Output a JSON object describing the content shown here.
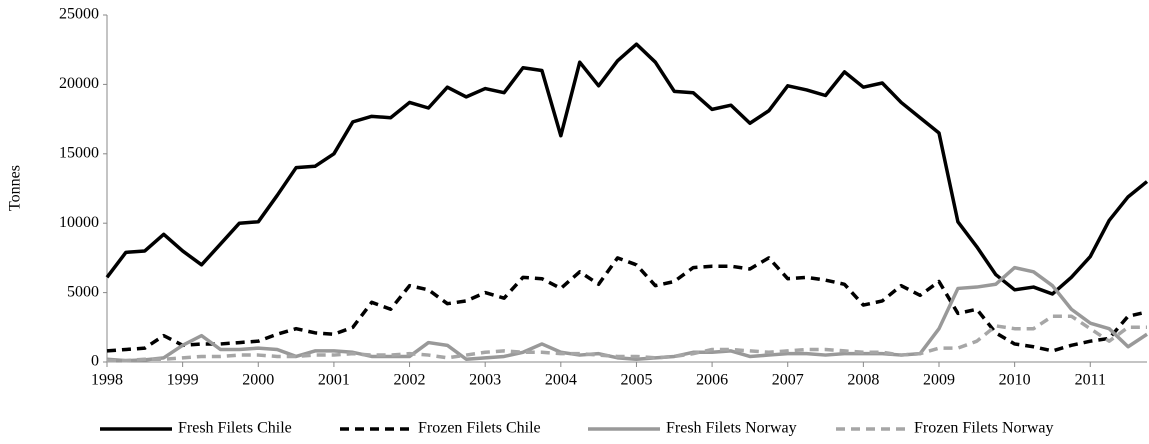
{
  "chart_data": {
    "type": "line",
    "y_label": "Tonnes",
    "x": [
      1998,
      1998.25,
      1998.5,
      1998.75,
      1999,
      1999.25,
      1999.5,
      1999.75,
      2000,
      2000.25,
      2000.5,
      2000.75,
      2001,
      2001.25,
      2001.5,
      2001.75,
      2002,
      2002.25,
      2002.5,
      2002.75,
      2003,
      2003.25,
      2003.5,
      2003.75,
      2004,
      2004.25,
      2004.5,
      2004.75,
      2005,
      2005.25,
      2005.5,
      2005.75,
      2006,
      2006.25,
      2006.5,
      2006.75,
      2007,
      2007.25,
      2007.5,
      2007.75,
      2008,
      2008.25,
      2008.5,
      2008.75,
      2009,
      2009.25,
      2009.5,
      2009.75,
      2010,
      2010.25,
      2010.5,
      2010.75,
      2011,
      2011.25,
      2011.5,
      2011.75
    ],
    "xlim": [
      1998,
      2011.75
    ],
    "xticks": [
      1998,
      1999,
      2000,
      2001,
      2002,
      2003,
      2004,
      2005,
      2006,
      2007,
      2008,
      2009,
      2010,
      2011
    ],
    "ylim": [
      0,
      25000
    ],
    "yticks": [
      0,
      5000,
      10000,
      15000,
      20000,
      25000
    ],
    "grid": false,
    "legend": "bottom",
    "series": [
      {
        "name": "Fresh Filets Chile",
        "color": "#000000",
        "dashed": false,
        "values": [
          6100,
          7900,
          8000,
          9200,
          8000,
          7000,
          8500,
          10000,
          10100,
          12000,
          14000,
          14100,
          15000,
          17300,
          17700,
          17600,
          18700,
          18300,
          19800,
          19100,
          19700,
          19400,
          21200,
          21000,
          16300,
          21600,
          19900,
          21700,
          22900,
          21600,
          19500,
          19400,
          18200,
          18500,
          17200,
          18100,
          19900,
          19600,
          19200,
          20900,
          19800,
          20100,
          18700,
          17600,
          16500,
          10100,
          8300,
          6300,
          5200,
          5400,
          4900,
          6100,
          7600,
          10200,
          11900,
          13000
        ]
      },
      {
        "name": "Frozen Filets Chile",
        "color": "#000000",
        "dashed": true,
        "values": [
          800,
          900,
          1000,
          1900,
          1200,
          1300,
          1300,
          1400,
          1500,
          2000,
          2400,
          2100,
          2000,
          2500,
          4300,
          3800,
          5500,
          5200,
          4200,
          4400,
          5000,
          4600,
          6100,
          6000,
          5300,
          6500,
          5600,
          7500,
          7000,
          5500,
          5800,
          6800,
          6900,
          6900,
          6700,
          7500,
          6000,
          6100,
          5900,
          5600,
          4100,
          4400,
          5500,
          4800,
          5800,
          3500,
          3800,
          2100,
          1300,
          1100,
          800,
          1200,
          1500,
          1700,
          3300,
          3600
        ]
      },
      {
        "name": "Fresh Filets Norway",
        "color": "#999999",
        "dashed": false,
        "values": [
          200,
          100,
          150,
          300,
          1200,
          1900,
          900,
          900,
          1000,
          900,
          400,
          800,
          800,
          700,
          400,
          400,
          400,
          1400,
          1200,
          200,
          300,
          400,
          700,
          1300,
          700,
          500,
          600,
          300,
          200,
          300,
          400,
          700,
          700,
          800,
          400,
          500,
          600,
          600,
          500,
          600,
          600,
          600,
          500,
          600,
          2400,
          5300,
          5400,
          5600,
          6800,
          6500,
          5500,
          3800,
          2800,
          2400,
          1100,
          2000
        ]
      },
      {
        "name": "Frozen Filets Norway",
        "color": "#a6a6a6",
        "dashed": true,
        "values": [
          100,
          100,
          200,
          200,
          300,
          400,
          400,
          500,
          500,
          400,
          400,
          500,
          500,
          600,
          500,
          500,
          600,
          500,
          300,
          500,
          700,
          800,
          700,
          700,
          600,
          600,
          500,
          400,
          400,
          300,
          400,
          600,
          900,
          900,
          800,
          700,
          800,
          900,
          900,
          800,
          700,
          700,
          500,
          600,
          1000,
          1000,
          1500,
          2600,
          2400,
          2400,
          3300,
          3300,
          2400,
          1500,
          2500,
          2500
        ]
      }
    ]
  }
}
